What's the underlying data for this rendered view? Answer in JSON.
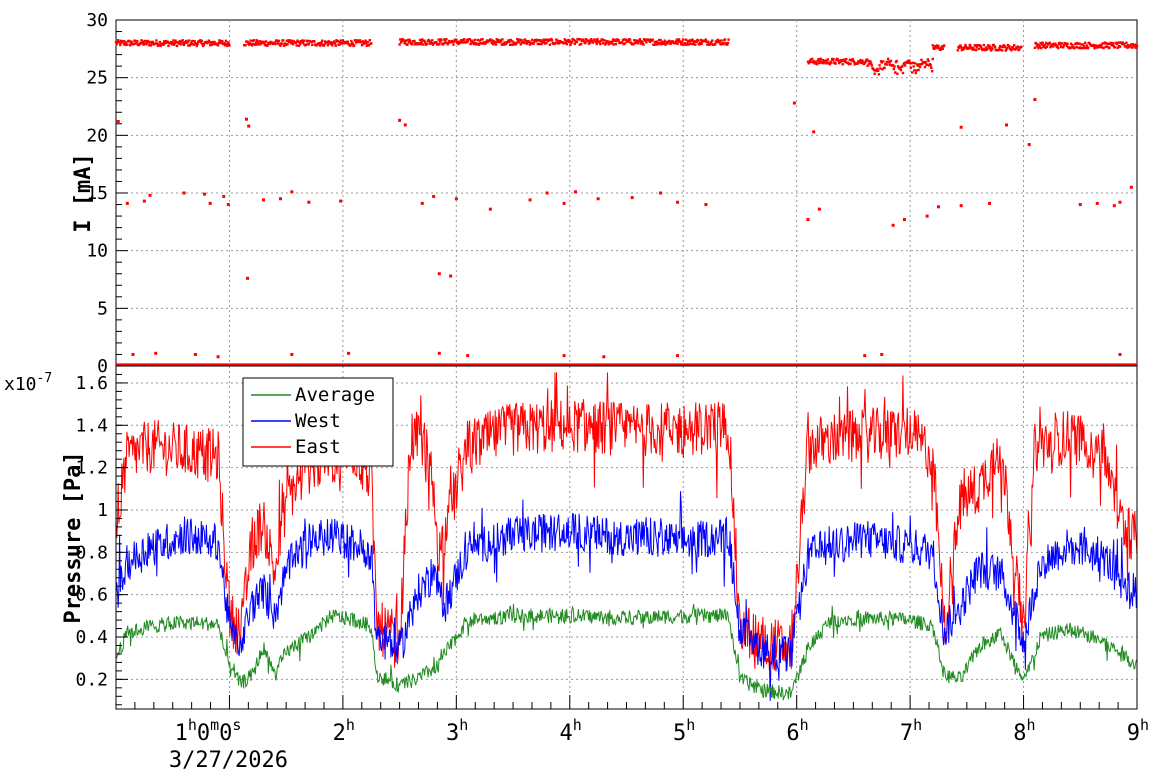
{
  "chart_data": [
    {
      "type": "scatter",
      "ylabel": "I [mA]",
      "ylim": [
        0,
        30
      ],
      "yticks": [
        "0",
        "5",
        "10",
        "15",
        "20",
        "25",
        "30"
      ],
      "xlim_hours": [
        0,
        9
      ],
      "grid": true,
      "series": [
        {
          "color": "#ff0000",
          "marker": "square",
          "segments": [
            {
              "x_range": [
                0.0,
                1.0
              ],
              "level": 28.0
            },
            {
              "x_range": [
                1.13,
                2.25
              ],
              "level": 28.0
            },
            {
              "x_range": [
                2.5,
                5.4
              ],
              "level": 28.1
            },
            {
              "x_range": [
                6.1,
                7.2
              ],
              "level": 26.4
            },
            {
              "x_range": [
                7.2,
                7.3
              ],
              "level": 27.6
            },
            {
              "x_range": [
                7.42,
                7.98
              ],
              "level": 27.6
            },
            {
              "x_range": [
                8.1,
                9.0
              ],
              "level": 27.8
            }
          ],
          "beam_off_intervals": [
            [
              5.4,
              6.05
            ]
          ],
          "outliers": [
            [
              0.02,
              21.2
            ],
            [
              0.1,
              14.1
            ],
            [
              0.25,
              14.3
            ],
            [
              0.3,
              14.8
            ],
            [
              0.6,
              15.0
            ],
            [
              0.78,
              14.9
            ],
            [
              0.83,
              14.1
            ],
            [
              0.95,
              14.7
            ],
            [
              0.99,
              14.0
            ],
            [
              1.15,
              21.4
            ],
            [
              1.17,
              20.8
            ],
            [
              1.16,
              7.6
            ],
            [
              1.3,
              14.4
            ],
            [
              1.45,
              14.5
            ],
            [
              1.55,
              15.1
            ],
            [
              1.7,
              14.2
            ],
            [
              1.98,
              14.3
            ],
            [
              2.5,
              21.3
            ],
            [
              2.55,
              20.9
            ],
            [
              2.7,
              14.1
            ],
            [
              2.8,
              14.7
            ],
            [
              2.85,
              8.0
            ],
            [
              2.95,
              7.8
            ],
            [
              3.0,
              14.5
            ],
            [
              3.3,
              13.6
            ],
            [
              3.65,
              14.4
            ],
            [
              3.8,
              15.0
            ],
            [
              3.95,
              14.1
            ],
            [
              4.05,
              15.1
            ],
            [
              4.25,
              14.5
            ],
            [
              4.55,
              14.6
            ],
            [
              4.8,
              15.0
            ],
            [
              4.95,
              14.2
            ],
            [
              5.2,
              14.0
            ],
            [
              5.98,
              22.8
            ],
            [
              6.1,
              12.7
            ],
            [
              6.15,
              20.3
            ],
            [
              6.2,
              13.6
            ],
            [
              6.85,
              12.2
            ],
            [
              6.95,
              12.7
            ],
            [
              7.15,
              13.0
            ],
            [
              7.25,
              13.8
            ],
            [
              7.45,
              20.7
            ],
            [
              7.45,
              13.9
            ],
            [
              7.7,
              14.1
            ],
            [
              7.85,
              20.9
            ],
            [
              8.05,
              19.2
            ],
            [
              8.1,
              23.1
            ],
            [
              8.5,
              14.0
            ],
            [
              8.65,
              14.1
            ],
            [
              8.8,
              13.9
            ],
            [
              8.85,
              14.2
            ],
            [
              8.95,
              15.5
            ]
          ],
          "near_zero_points": [
            [
              0.15,
              1.0
            ],
            [
              0.35,
              1.1
            ],
            [
              0.7,
              1.0
            ],
            [
              0.9,
              0.8
            ],
            [
              1.55,
              1.0
            ],
            [
              2.05,
              1.1
            ],
            [
              2.85,
              1.1
            ],
            [
              3.1,
              0.9
            ],
            [
              3.95,
              0.9
            ],
            [
              4.3,
              0.8
            ],
            [
              4.95,
              0.9
            ],
            [
              6.6,
              0.9
            ],
            [
              6.75,
              1.0
            ],
            [
              8.85,
              1.0
            ]
          ]
        }
      ]
    },
    {
      "type": "line",
      "ylabel": "Pressure [Pa]",
      "y_multiplier": "x10-7",
      "ylim": [
        0.06,
        1.68
      ],
      "yticks": [
        "0.2",
        "0.4",
        "0.6",
        "0.8",
        "1",
        "1.2",
        "1.4",
        "1.6"
      ],
      "xlim_hours": [
        0,
        9
      ],
      "x_ticks": [
        "1h0m0s",
        "2h",
        "3h",
        "4h",
        "5h",
        "6h",
        "7h",
        "8h",
        "9h"
      ],
      "x_date": "3/27/2026",
      "grid": true,
      "legend_position": "top-left",
      "series": [
        {
          "name": "Average",
          "color": "#228b22",
          "points": [
            [
              0,
              0.3
            ],
            [
              0.1,
              0.42
            ],
            [
              0.3,
              0.45
            ],
            [
              0.6,
              0.47
            ],
            [
              0.9,
              0.46
            ],
            [
              1.0,
              0.25
            ],
            [
              1.1,
              0.18
            ],
            [
              1.2,
              0.22
            ],
            [
              1.3,
              0.35
            ],
            [
              1.4,
              0.22
            ],
            [
              1.5,
              0.33
            ],
            [
              1.7,
              0.4
            ],
            [
              1.9,
              0.5
            ],
            [
              2.1,
              0.48
            ],
            [
              2.25,
              0.45
            ],
            [
              2.3,
              0.22
            ],
            [
              2.5,
              0.17
            ],
            [
              2.65,
              0.2
            ],
            [
              2.8,
              0.25
            ],
            [
              2.9,
              0.32
            ],
            [
              3.1,
              0.48
            ],
            [
              3.5,
              0.5
            ],
            [
              4.0,
              0.5
            ],
            [
              4.5,
              0.49
            ],
            [
              5.0,
              0.5
            ],
            [
              5.4,
              0.5
            ],
            [
              5.5,
              0.2
            ],
            [
              5.7,
              0.15
            ],
            [
              5.95,
              0.13
            ],
            [
              6.1,
              0.35
            ],
            [
              6.3,
              0.48
            ],
            [
              6.6,
              0.49
            ],
            [
              7.0,
              0.48
            ],
            [
              7.2,
              0.45
            ],
            [
              7.3,
              0.22
            ],
            [
              7.45,
              0.2
            ],
            [
              7.6,
              0.35
            ],
            [
              7.8,
              0.42
            ],
            [
              8.0,
              0.18
            ],
            [
              8.15,
              0.4
            ],
            [
              8.4,
              0.44
            ],
            [
              8.7,
              0.38
            ],
            [
              9.0,
              0.27
            ]
          ],
          "noise": 0.035
        },
        {
          "name": "West",
          "color": "#0000ff",
          "points": [
            [
              0,
              0.58
            ],
            [
              0.1,
              0.75
            ],
            [
              0.3,
              0.82
            ],
            [
              0.6,
              0.88
            ],
            [
              0.9,
              0.85
            ],
            [
              1.0,
              0.45
            ],
            [
              1.1,
              0.38
            ],
            [
              1.2,
              0.55
            ],
            [
              1.3,
              0.62
            ],
            [
              1.4,
              0.5
            ],
            [
              1.5,
              0.72
            ],
            [
              1.7,
              0.85
            ],
            [
              1.9,
              0.88
            ],
            [
              2.1,
              0.84
            ],
            [
              2.25,
              0.8
            ],
            [
              2.3,
              0.42
            ],
            [
              2.5,
              0.33
            ],
            [
              2.65,
              0.6
            ],
            [
              2.8,
              0.7
            ],
            [
              2.9,
              0.55
            ],
            [
              3.1,
              0.82
            ],
            [
              3.5,
              0.88
            ],
            [
              4.0,
              0.9
            ],
            [
              4.5,
              0.87
            ],
            [
              5.0,
              0.85
            ],
            [
              5.4,
              0.88
            ],
            [
              5.5,
              0.42
            ],
            [
              5.7,
              0.34
            ],
            [
              5.95,
              0.31
            ],
            [
              6.1,
              0.78
            ],
            [
              6.3,
              0.84
            ],
            [
              6.6,
              0.86
            ],
            [
              7.0,
              0.83
            ],
            [
              7.2,
              0.8
            ],
            [
              7.3,
              0.42
            ],
            [
              7.45,
              0.55
            ],
            [
              7.6,
              0.72
            ],
            [
              7.8,
              0.7
            ],
            [
              8.0,
              0.38
            ],
            [
              8.15,
              0.75
            ],
            [
              8.4,
              0.83
            ],
            [
              8.7,
              0.78
            ],
            [
              9.0,
              0.6
            ]
          ],
          "noise": 0.09
        },
        {
          "name": "East",
          "color": "#ff0000",
          "points": [
            [
              0,
              0.95
            ],
            [
              0.1,
              1.25
            ],
            [
              0.3,
              1.3
            ],
            [
              0.6,
              1.28
            ],
            [
              0.9,
              1.25
            ],
            [
              1.0,
              0.5
            ],
            [
              1.1,
              0.42
            ],
            [
              1.2,
              0.85
            ],
            [
              1.3,
              0.95
            ],
            [
              1.4,
              0.7
            ],
            [
              1.5,
              1.05
            ],
            [
              1.7,
              1.2
            ],
            [
              1.9,
              1.25
            ],
            [
              2.1,
              1.28
            ],
            [
              2.25,
              1.15
            ],
            [
              2.3,
              0.45
            ],
            [
              2.5,
              0.38
            ],
            [
              2.6,
              1.35
            ],
            [
              2.75,
              1.3
            ],
            [
              2.85,
              0.8
            ],
            [
              3.1,
              1.3
            ],
            [
              3.5,
              1.38
            ],
            [
              4.0,
              1.4
            ],
            [
              4.5,
              1.38
            ],
            [
              5.0,
              1.38
            ],
            [
              5.4,
              1.4
            ],
            [
              5.5,
              0.45
            ],
            [
              5.7,
              0.38
            ],
            [
              5.95,
              0.34
            ],
            [
              6.1,
              1.3
            ],
            [
              6.3,
              1.33
            ],
            [
              6.6,
              1.35
            ],
            [
              7.0,
              1.37
            ],
            [
              7.2,
              1.25
            ],
            [
              7.3,
              0.45
            ],
            [
              7.45,
              1.05
            ],
            [
              7.6,
              1.1
            ],
            [
              7.8,
              1.3
            ],
            [
              8.0,
              0.42
            ],
            [
              8.1,
              1.3
            ],
            [
              8.4,
              1.35
            ],
            [
              8.7,
              1.3
            ],
            [
              8.85,
              0.95
            ],
            [
              9.0,
              0.86
            ]
          ],
          "noise": 0.13
        }
      ]
    }
  ]
}
